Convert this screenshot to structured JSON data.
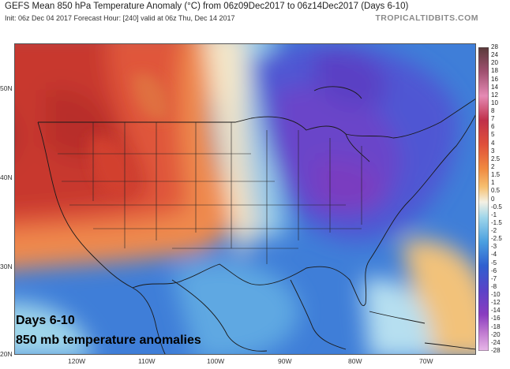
{
  "header": {
    "title": "GEFS Mean 850 hPa Temperature Anomaly (°C) from 06z09Dec2017 to 06z14Dec2017 (Days 6-10)",
    "subtitle": "Init: 06z Dec 04 2017   Forecast Hour: [240]   valid at 06z Thu, Dec 14 2017",
    "site": "TROPICALTIDBITS.COM"
  },
  "axes": {
    "lat_labels": [
      "50N",
      "40N",
      "30N",
      "20N"
    ],
    "lon_labels": [
      "120W",
      "110W",
      "100W",
      "90W",
      "80W",
      "70W"
    ]
  },
  "colorbar": {
    "labels": [
      "28",
      "24",
      "20",
      "18",
      "16",
      "14",
      "12",
      "10",
      "8",
      "7",
      "6",
      "5",
      "4",
      "3",
      "2.5",
      "2",
      "1.5",
      "1",
      "0.5",
      "0",
      "-0.5",
      "-1",
      "-1.5",
      "-2",
      "-2.5",
      "-3",
      "-4",
      "-5",
      "-6",
      "-7",
      "-8",
      "-10",
      "-12",
      "-14",
      "-16",
      "-18",
      "-20",
      "-24",
      "-28"
    ]
  },
  "overlay": {
    "line1": "Days 6-10",
    "line2": "850 mb temperature anomalies"
  },
  "colors": {
    "warm_core": "#c03a2e",
    "warm_mid": "#e8663c",
    "warm_light": "#f6b36a",
    "neutral": "#f4f1e4",
    "cool_light": "#9fd3ea",
    "cool_mid": "#3e79d6",
    "cold_core": "#5a43c8",
    "cold_deep": "#7a3cc0"
  }
}
